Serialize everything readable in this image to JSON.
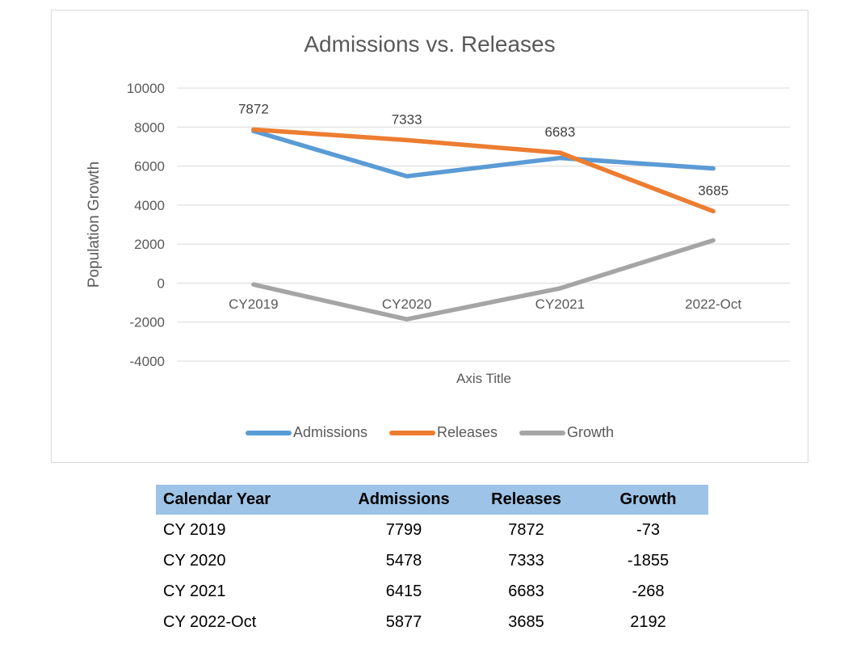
{
  "chart_data": {
    "type": "line",
    "title": "Admissions vs. Releases",
    "xlabel": "Axis Title",
    "ylabel": "Population Growth",
    "categories": [
      "CY2019",
      "CY2020",
      "CY2021",
      "2022-Oct"
    ],
    "series": [
      {
        "name": "Admissions",
        "color": "#5B9BD5",
        "values": [
          7799,
          5478,
          6415,
          5877
        ],
        "data_labels": false
      },
      {
        "name": "Releases",
        "color": "#ED7D31",
        "values": [
          7872,
          7333,
          6683,
          3685
        ],
        "data_labels": true
      },
      {
        "name": "Growth",
        "color": "#A5A5A5",
        "values": [
          -73,
          -1855,
          -268,
          2192
        ],
        "data_labels": false
      }
    ],
    "ylim": [
      -4000,
      10000
    ],
    "yticks": [
      10000,
      8000,
      6000,
      4000,
      2000,
      0,
      -2000,
      -4000
    ],
    "grid": true,
    "legend_position": "bottom"
  },
  "colors": {
    "grid": "#D9D9D9",
    "chart_border": "#D9D9D9",
    "axis_text": "#595959",
    "title_text": "#595959",
    "data_label": "#404040",
    "table_header_bg": "#9DC3E6",
    "table_text": "#000000"
  },
  "table": {
    "columns": [
      "Calendar Year",
      "Admissions",
      "Releases",
      "Growth"
    ],
    "rows": [
      [
        "CY 2019",
        "7799",
        "7872",
        "-73"
      ],
      [
        "CY 2020",
        "5478",
        "7333",
        "-1855"
      ],
      [
        "CY 2021",
        "6415",
        "6683",
        "-268"
      ],
      [
        "CY 2022-Oct",
        "5877",
        "3685",
        "2192"
      ]
    ]
  }
}
